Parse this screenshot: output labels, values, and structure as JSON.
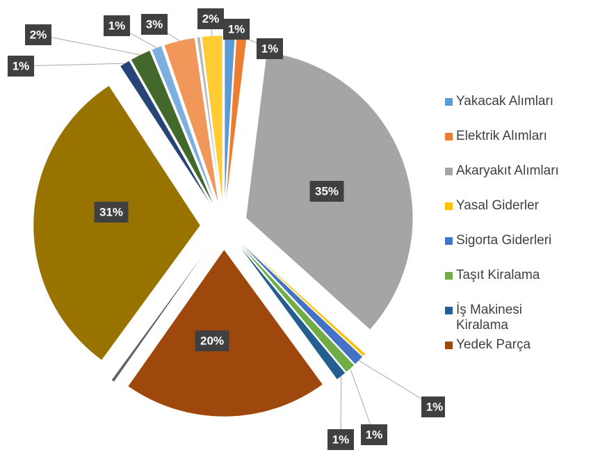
{
  "chart_data": {
    "type": "pie",
    "categories": [
      "Yakacak Alımları",
      "Elektrik Alımları",
      "Akaryakıt Alımları",
      "Yasal Giderler",
      "Sigorta Giderleri",
      "Taşıt Kiralama",
      "İş Makinesi Kiralama",
      "Yedek Parça",
      null,
      null,
      null,
      null,
      null,
      null,
      null,
      null
    ],
    "values": [
      1,
      1,
      35,
      0.3,
      1,
      1,
      1,
      20,
      0.3,
      31,
      1,
      2,
      1,
      3,
      0.3,
      2
    ],
    "value_labels": [
      "1%",
      "1%",
      "35%",
      null,
      "1%",
      "1%",
      "1%",
      "20%",
      null,
      "31%",
      "1%",
      "2%",
      "1%",
      "3%",
      null,
      "2%"
    ],
    "colors": [
      "#5b9bd5",
      "#ed7d31",
      "#a5a5a5",
      "#ffc000",
      "#4472c4",
      "#70ad47",
      "#255e91",
      "#9e480e",
      "#636363",
      "#997300",
      "#264478",
      "#43682b",
      "#7cafdd",
      "#f1975a",
      "#b7b7b7",
      "#ffcd33"
    ],
    "legend": "right"
  }
}
